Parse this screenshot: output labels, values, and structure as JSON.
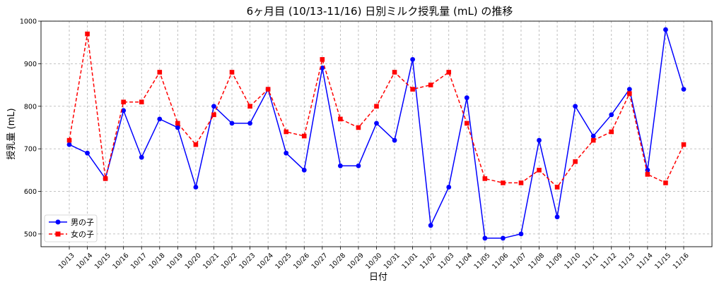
{
  "chart_data": {
    "type": "line",
    "title": "6ヶ月目 (10/13-11/16) 日別ミルク授乳量 (mL) の推移",
    "xlabel": "日付",
    "ylabel": "授乳量 (mL)",
    "ylim": [
      470,
      1000
    ],
    "yticks": [
      500,
      600,
      700,
      800,
      900,
      1000
    ],
    "grid": true,
    "legend_position": "lower-left",
    "categories": [
      "10/13",
      "10/14",
      "10/15",
      "10/16",
      "10/17",
      "10/18",
      "10/19",
      "10/20",
      "10/21",
      "10/22",
      "10/23",
      "10/24",
      "10/25",
      "10/26",
      "10/27",
      "10/28",
      "10/29",
      "10/30",
      "10/31",
      "11/01",
      "11/02",
      "11/03",
      "11/04",
      "11/05",
      "11/06",
      "11/07",
      "11/08",
      "11/09",
      "11/10",
      "11/11",
      "11/12",
      "11/13",
      "11/14",
      "11/15",
      "11/16"
    ],
    "series": [
      {
        "name": "男の子",
        "color": "#0000ff",
        "line_style": "solid",
        "marker": "circle",
        "values": [
          710,
          690,
          630,
          790,
          680,
          770,
          750,
          610,
          800,
          760,
          760,
          840,
          690,
          650,
          890,
          660,
          660,
          760,
          720,
          910,
          520,
          610,
          820,
          490,
          490,
          500,
          720,
          540,
          800,
          730,
          780,
          840,
          650,
          980,
          840
        ]
      },
      {
        "name": "女の子",
        "color": "#ff0000",
        "line_style": "dashed",
        "marker": "square",
        "values": [
          720,
          970,
          630,
          810,
          810,
          880,
          760,
          710,
          780,
          880,
          800,
          840,
          740,
          730,
          910,
          770,
          750,
          800,
          880,
          840,
          850,
          880,
          760,
          630,
          620,
          620,
          650,
          610,
          670,
          720,
          740,
          830,
          640,
          620,
          710
        ]
      }
    ]
  }
}
